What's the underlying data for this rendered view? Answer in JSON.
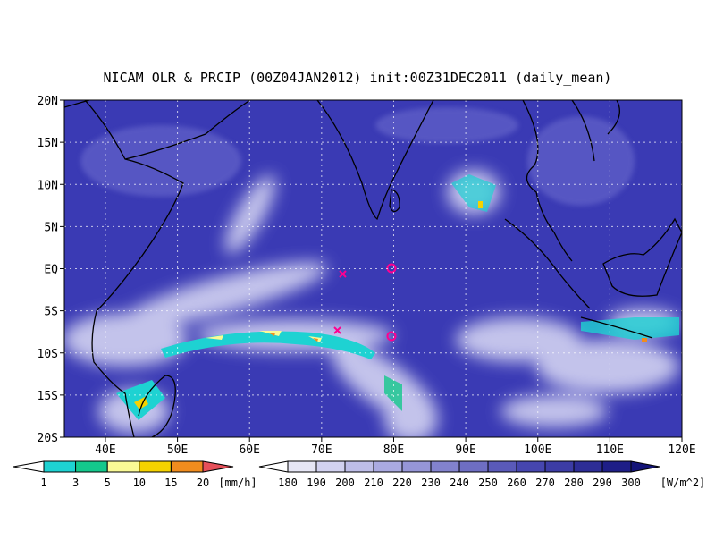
{
  "title": "NICAM OLR & PRCIP (00Z04JAN2012) init:00Z31DEC2011 (daily_mean)",
  "map": {
    "lonlim": [
      34.3,
      120
    ],
    "latlim": [
      -20,
      20
    ],
    "grid": true,
    "lon_ticks": [
      {
        "value": 40,
        "label": "40E"
      },
      {
        "value": 50,
        "label": "50E"
      },
      {
        "value": 60,
        "label": "60E"
      },
      {
        "value": 70,
        "label": "70E"
      },
      {
        "value": 80,
        "label": "80E"
      },
      {
        "value": 90,
        "label": "90E"
      },
      {
        "value": 100,
        "label": "100E"
      },
      {
        "value": 110,
        "label": "110E"
      },
      {
        "value": 120,
        "label": "120E"
      }
    ],
    "lat_ticks": [
      {
        "value": 20,
        "label": "20N"
      },
      {
        "value": 15,
        "label": "15N"
      },
      {
        "value": 10,
        "label": "10N"
      },
      {
        "value": 5,
        "label": "5N"
      },
      {
        "value": 0,
        "label": "EQ"
      },
      {
        "value": -5,
        "label": "5S"
      },
      {
        "value": -10,
        "label": "10S"
      },
      {
        "value": -15,
        "label": "15S"
      },
      {
        "value": -20,
        "label": "20S"
      }
    ]
  },
  "precip_legend": {
    "levels": [
      1,
      3,
      5,
      10,
      15,
      20
    ],
    "colors": [
      "#ffffff",
      "#1ed2d2",
      "#14c88c",
      "#fafa96",
      "#f5d200",
      "#f08c1e",
      "#e6505a"
    ],
    "unit": "[mm/h]"
  },
  "olr_legend": {
    "levels": [
      180,
      190,
      200,
      210,
      220,
      230,
      240,
      250,
      260,
      270,
      280,
      290,
      300
    ],
    "colors": [
      "#ffffff",
      "#e6e6f5",
      "#d2d2f0",
      "#bebee8",
      "#aaaae1",
      "#9696d7",
      "#8282cd",
      "#6e6ec3",
      "#5a5ab9",
      "#4646af",
      "#3c3ca5",
      "#2d2d96",
      "#1e1e87",
      "#141478"
    ],
    "unit": "[W/m^2]"
  }
}
